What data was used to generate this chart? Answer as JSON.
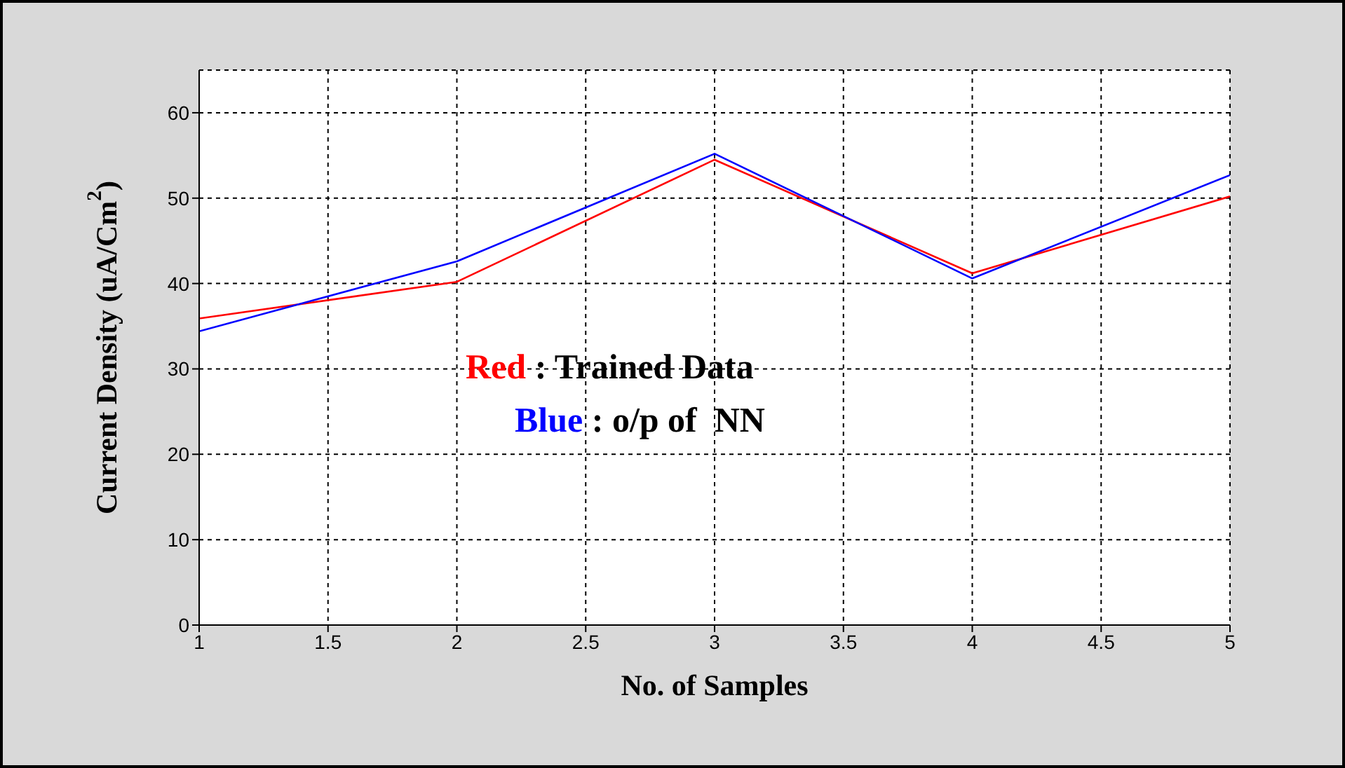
{
  "chart_data": {
    "type": "line",
    "xlabel": "No. of Samples",
    "ylabel": "Current  Density (uA/Cm$^{2}$)",
    "x": [
      1,
      2,
      3,
      4,
      5
    ],
    "series": [
      {
        "name": "Red",
        "color": "#ff0000",
        "values": [
          35.9,
          40.2,
          54.5,
          41.2,
          50.2
        ]
      },
      {
        "name": "Blue",
        "color": "#0000ff",
        "values": [
          34.4,
          42.6,
          55.2,
          40.6,
          52.7
        ]
      }
    ],
    "annotations": [
      ": Trained Data",
      ": o/p of  NN"
    ],
    "xlim": [
      1,
      5
    ],
    "xticks": [
      1,
      1.5,
      2,
      2.5,
      3,
      3.5,
      4,
      4.5,
      5
    ],
    "ylim": [
      0,
      65
    ],
    "yticks": [
      0,
      10,
      20,
      30,
      40,
      50,
      60
    ],
    "grid": true,
    "legend": "center",
    "marker": "none",
    "line_style": "solid"
  }
}
